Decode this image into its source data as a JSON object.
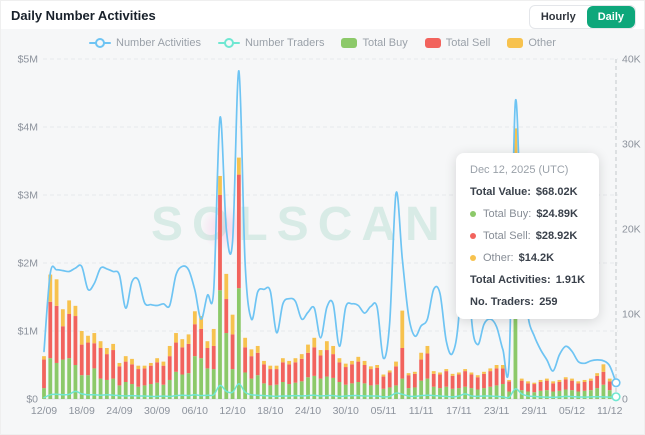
{
  "header": {
    "title": "Daily Number Activities",
    "active_color": "#0EA77B",
    "toggle": [
      {
        "label": "Hourly",
        "active": false
      },
      {
        "label": "Daily",
        "active": true
      }
    ]
  },
  "legend": [
    {
      "label": "Number Activities",
      "key": "activities",
      "marker": "line"
    },
    {
      "label": "Number Traders",
      "key": "traders",
      "marker": "line"
    },
    {
      "label": "Total Buy",
      "key": "buy",
      "marker": "rect"
    },
    {
      "label": "Total Sell",
      "key": "sell",
      "marker": "rect"
    },
    {
      "label": "Other",
      "key": "other",
      "marker": "rect"
    }
  ],
  "watermark": "SOLSCAN",
  "tooltip": {
    "date": "Dec 12, 2025 (UTC)",
    "total_value_label": "Total Value:",
    "total_value": "$68.02K",
    "rows": [
      {
        "series": "buy",
        "label": "Total Buy:",
        "value": "$24.89K"
      },
      {
        "series": "sell",
        "label": "Total Sell:",
        "value": "$28.92K"
      },
      {
        "series": "other",
        "label": "Other:",
        "value": "$14.2K"
      }
    ],
    "total_activities_label": "Total Activities:",
    "total_activities": "1.91K",
    "traders_label": "No. Traders:",
    "traders_value": "259"
  },
  "chart_data": {
    "type": "combo",
    "title": "Daily Number Activities",
    "days": 92,
    "x_tick_every": 6,
    "x_tick_labels": [
      "12/09",
      "18/09",
      "24/09",
      "30/09",
      "06/10",
      "12/10",
      "18/10",
      "24/10",
      "30/10",
      "05/11",
      "11/11",
      "17/11",
      "23/11",
      "29/11",
      "05/12",
      "11/12"
    ],
    "left_axis": {
      "unit": "$K",
      "max": 5000,
      "grid": "dashed",
      "ticks": [
        {
          "v": 0,
          "label": "$0"
        },
        {
          "v": 1000,
          "label": "$1M"
        },
        {
          "v": 2000,
          "label": "$2M"
        },
        {
          "v": 3000,
          "label": "$3M"
        },
        {
          "v": 4000,
          "label": "$4M"
        },
        {
          "v": 5000,
          "label": "$5M"
        }
      ]
    },
    "right_axis": {
      "unit": "K",
      "max": 40,
      "ticks": [
        {
          "v": 0,
          "label": "0"
        },
        {
          "v": 10,
          "label": "10K"
        },
        {
          "v": 20,
          "label": "20K"
        },
        {
          "v": 30,
          "label": "30K"
        },
        {
          "v": 40,
          "label": "40K"
        }
      ]
    },
    "highlight_index": 91,
    "series": [
      {
        "key": "buy",
        "name": "Total Buy",
        "type": "bar",
        "stack": true,
        "axis": "left",
        "color": "#8CC969",
        "values": [
          160,
          600,
          530,
          580,
          600,
          500,
          350,
          350,
          450,
          300,
          280,
          300,
          200,
          250,
          220,
          180,
          200,
          220,
          240,
          210,
          280,
          400,
          360,
          380,
          630,
          600,
          450,
          440,
          1600,
          970,
          440,
          1630,
          390,
          300,
          350,
          230,
          200,
          210,
          250,
          220,
          240,
          260,
          320,
          340,
          300,
          330,
          310,
          250,
          210,
          230,
          250,
          230,
          200,
          210,
          150,
          170,
          200,
          300,
          160,
          170,
          270,
          300,
          180,
          160,
          180,
          150,
          160,
          180,
          160,
          140,
          160,
          180,
          200,
          220,
          110,
          3300,
          130,
          110,
          100,
          120,
          130,
          110,
          120,
          140,
          130,
          110,
          120,
          130,
          160,
          210,
          130,
          24.89
        ]
      },
      {
        "key": "sell",
        "name": "Total Sell",
        "type": "bar",
        "stack": true,
        "axis": "left",
        "color": "#F2635D",
        "values": [
          420,
          830,
          840,
          490,
          650,
          720,
          450,
          480,
          370,
          450,
          380,
          420,
          280,
          300,
          290,
          260,
          250,
          270,
          300,
          280,
          350,
          430,
          400,
          430,
          470,
          430,
          300,
          340,
          1400,
          500,
          510,
          1670,
          370,
          330,
          330,
          280,
          240,
          230,
          290,
          290,
          300,
          330,
          360,
          420,
          340,
          390,
          350,
          290,
          260,
          280,
          300,
          270,
          240,
          250,
          180,
          220,
          280,
          450,
          190,
          200,
          310,
          370,
          190,
          200,
          230,
          190,
          200,
          230,
          200,
          180,
          210,
          230,
          250,
          230,
          150,
          200,
          140,
          120,
          120,
          130,
          140,
          120,
          130,
          150,
          140,
          120,
          130,
          140,
          180,
          190,
          130,
          28.92
        ]
      },
      {
        "key": "other",
        "name": "Other",
        "type": "bar",
        "stack": true,
        "axis": "left",
        "color": "#F7C24E",
        "values": [
          50,
          400,
          390,
          250,
          200,
          150,
          200,
          100,
          150,
          100,
          90,
          90,
          50,
          80,
          80,
          50,
          40,
          40,
          60,
          60,
          150,
          140,
          120,
          140,
          190,
          190,
          100,
          250,
          280,
          370,
          290,
          250,
          140,
          100,
          100,
          50,
          50,
          50,
          60,
          50,
          60,
          70,
          120,
          140,
          80,
          130,
          120,
          60,
          50,
          50,
          70,
          60,
          40,
          40,
          30,
          30,
          70,
          550,
          30,
          30,
          100,
          110,
          40,
          30,
          30,
          30,
          30,
          30,
          30,
          30,
          30,
          40,
          50,
          50,
          20,
          480,
          30,
          30,
          20,
          30,
          30,
          30,
          30,
          30,
          30,
          30,
          30,
          30,
          40,
          110,
          40,
          14.2
        ]
      },
      {
        "key": "activities",
        "name": "Number Activities",
        "type": "line",
        "axis": "right",
        "color": "#6EC4F3",
        "values": [
          5.6,
          14.8,
          15.2,
          15.1,
          15.0,
          15.4,
          15.6,
          12.9,
          13.6,
          15.4,
          15.3,
          15.0,
          14.6,
          10.7,
          13.8,
          14.0,
          11.3,
          11.1,
          11.0,
          11.2,
          11.0,
          14.6,
          15.6,
          15.2,
          12.8,
          9.4,
          12.2,
          12.8,
          33.1,
          20.0,
          18.6,
          38.6,
          16.0,
          9.4,
          12.6,
          12.9,
          12.7,
          7.8,
          11.2,
          11.8,
          11.5,
          9.4,
          10.2,
          10.7,
          7.2,
          10.8,
          11.2,
          6.2,
          10.8,
          11.2,
          11.0,
          10.1,
          10.9,
          10.8,
          4.8,
          9.0,
          24.2,
          16.5,
          9.8,
          7.4,
          8.6,
          9.4,
          12.9,
          12.4,
          6.8,
          5.4,
          9.8,
          24.1,
          9.6,
          6.4,
          8.8,
          9.4,
          8.5,
          5.8,
          4.2,
          35.0,
          17.5,
          9.8,
          7.4,
          5.8,
          4.6,
          3.3,
          5.2,
          6.2,
          5.6,
          4.4,
          4.2,
          4.5,
          4.6,
          4.5,
          3.9,
          1.91
        ]
      },
      {
        "key": "traders",
        "name": "Number Traders",
        "type": "line",
        "axis": "right",
        "color": "#6FE7D2",
        "values": [
          0.15,
          0.5,
          0.55,
          0.5,
          0.55,
          0.9,
          0.6,
          0.5,
          0.5,
          0.45,
          0.5,
          0.45,
          0.4,
          0.35,
          0.4,
          0.35,
          0.35,
          0.3,
          0.3,
          0.35,
          0.3,
          0.4,
          0.45,
          0.4,
          0.5,
          0.4,
          0.45,
          0.5,
          1.6,
          0.9,
          0.8,
          1.8,
          0.8,
          0.5,
          0.45,
          0.4,
          0.35,
          0.3,
          0.35,
          0.35,
          0.4,
          0.35,
          0.4,
          0.45,
          0.35,
          0.4,
          0.4,
          0.3,
          0.35,
          0.4,
          0.4,
          0.35,
          0.35,
          0.35,
          0.25,
          0.3,
          0.7,
          0.55,
          0.35,
          0.3,
          0.4,
          0.45,
          0.4,
          0.35,
          0.3,
          0.25,
          0.35,
          0.6,
          0.35,
          0.3,
          0.35,
          0.35,
          0.3,
          0.25,
          0.2,
          1.2,
          0.6,
          0.35,
          0.3,
          0.25,
          0.22,
          0.2,
          0.25,
          0.3,
          0.28,
          0.24,
          0.22,
          0.25,
          0.26,
          0.25,
          0.22,
          0.259
        ]
      }
    ]
  }
}
